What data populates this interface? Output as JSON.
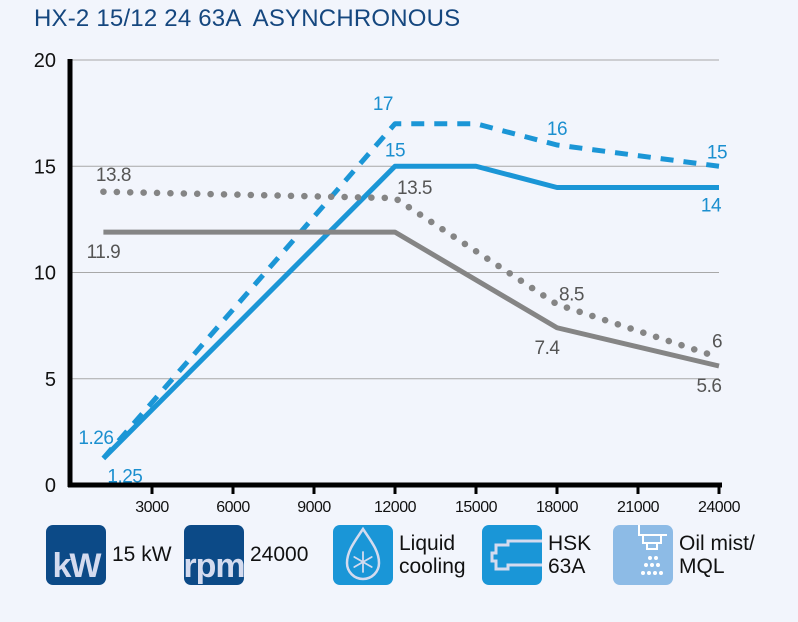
{
  "title": "HX-2 15/12 24 63A  ASYNCHRONOUS",
  "colors": {
    "blue": "#1b96d6",
    "gray": "#858585",
    "title": "#15477f",
    "icon_dark": "#0c4a87",
    "icon_blue": "#1a96d7",
    "icon_light": "#8dbbe6",
    "background": "#f2f5fc"
  },
  "chart_data": {
    "type": "line",
    "title": "HX-2 15/12 24 63A  ASYNCHRONOUS",
    "xlabel": "",
    "ylabel": "",
    "xlim": [
      0,
      24000
    ],
    "ylim": [
      0,
      20
    ],
    "x_ticks": [
      3000,
      6000,
      9000,
      12000,
      15000,
      18000,
      21000,
      24000
    ],
    "y_ticks": [
      0,
      5,
      10,
      15,
      20
    ],
    "grid": "horizontal",
    "series": [
      {
        "name": "blue-dashed",
        "color": "#1b96d6",
        "style": "dashed",
        "x": [
          1200,
          12000,
          15000,
          18000,
          24000
        ],
        "y": [
          1.26,
          17,
          17,
          16,
          15
        ],
        "labels": [
          {
            "x": 1200,
            "y": 1.26,
            "text": "1.26",
            "pos": "above-left"
          },
          {
            "x": 12000,
            "y": 17,
            "text": "17",
            "pos": "above-left"
          },
          {
            "x": 18000,
            "y": 16,
            "text": "16",
            "pos": "above"
          },
          {
            "x": 24000,
            "y": 15,
            "text": "15",
            "pos": "above"
          }
        ]
      },
      {
        "name": "blue-solid",
        "color": "#1b96d6",
        "style": "solid",
        "x": [
          1200,
          12000,
          15000,
          18000,
          24000
        ],
        "y": [
          1.25,
          15,
          15,
          14,
          14
        ],
        "labels": [
          {
            "x": 1200,
            "y": 1.25,
            "text": "1.25",
            "pos": "below-right"
          },
          {
            "x": 12000,
            "y": 15,
            "text": "15",
            "pos": "above"
          },
          {
            "x": 24000,
            "y": 14,
            "text": "14",
            "pos": "below"
          }
        ]
      },
      {
        "name": "gray-dotted",
        "color": "#858585",
        "style": "dotted",
        "x": [
          1200,
          12000,
          18000,
          24000
        ],
        "y": [
          13.8,
          13.5,
          8.5,
          6
        ],
        "labels": [
          {
            "x": 1200,
            "y": 13.8,
            "text": "13.8",
            "pos": "above"
          },
          {
            "x": 12000,
            "y": 13.5,
            "text": "13.5",
            "pos": "above-right"
          },
          {
            "x": 18000,
            "y": 8.5,
            "text": "8.5",
            "pos": "above-right"
          },
          {
            "x": 24000,
            "y": 6,
            "text": "6",
            "pos": "above"
          }
        ]
      },
      {
        "name": "gray-solid",
        "color": "#858585",
        "style": "solid",
        "x": [
          1200,
          12000,
          18000,
          24000
        ],
        "y": [
          11.9,
          11.9,
          7.4,
          5.6
        ],
        "labels": [
          {
            "x": 1200,
            "y": 11.9,
            "text": "11.9",
            "pos": "below"
          },
          {
            "x": 18000,
            "y": 7.4,
            "text": "7.4",
            "pos": "below"
          },
          {
            "x": 24000,
            "y": 5.6,
            "text": "5.6",
            "pos": "below"
          }
        ]
      }
    ]
  },
  "legend": [
    {
      "icon": "kw-icon",
      "icon_text": "kW",
      "label": "15 kW"
    },
    {
      "icon": "rpm-icon",
      "icon_text": "rpm",
      "label": "24000"
    },
    {
      "icon": "liquid-cooling-icon",
      "icon_text": "",
      "label": "Liquid\ncooling"
    },
    {
      "icon": "hsk-tool-holder-icon",
      "icon_text": "",
      "label": "HSK\n63A"
    },
    {
      "icon": "oil-mist-icon",
      "icon_text": "",
      "label": "Oil mist/\nMQL"
    }
  ]
}
